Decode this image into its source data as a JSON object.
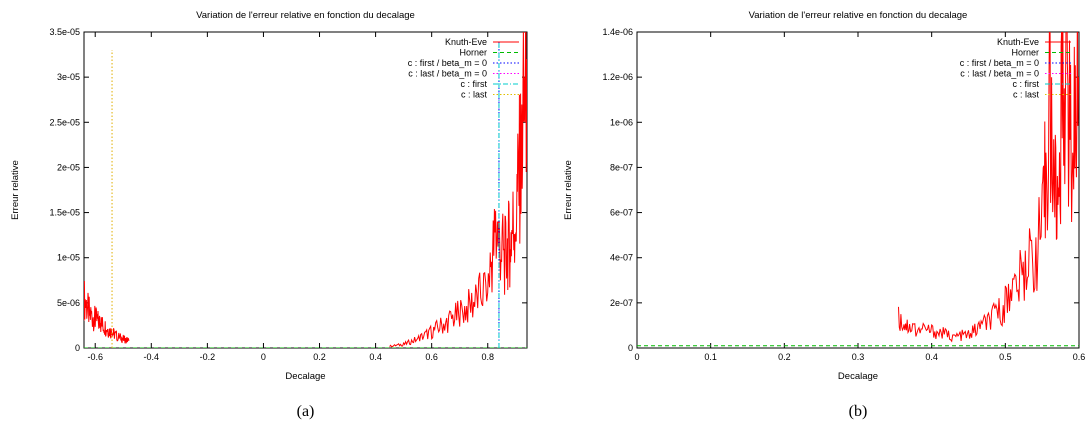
{
  "chart_data": [
    {
      "type": "line",
      "title": "Variation de l'erreur relative en fonction du decalage",
      "xlabel": "Decalage",
      "ylabel": "Erreur relative",
      "caption": "(a)",
      "xlim": [
        -0.64,
        0.94
      ],
      "ylim": [
        0,
        3.5e-05
      ],
      "xticks": [
        -0.6,
        -0.4,
        -0.2,
        0,
        0.2,
        0.4,
        0.6,
        0.8
      ],
      "xtick_labels": [
        "-0.6",
        "-0.4",
        "-0.2",
        "0",
        "0.2",
        "0.4",
        "0.6",
        "0.8"
      ],
      "yticks": [
        0,
        5e-06,
        1e-05,
        1.5e-05,
        2e-05,
        2.5e-05,
        3e-05,
        3.5e-05
      ],
      "ytick_labels": [
        "0",
        "5e-06",
        "1e-05",
        "1.5e-05",
        "2e-05",
        "2.5e-05",
        "3e-05",
        "3.5e-05"
      ],
      "legend_position": "top-right",
      "grid": false,
      "series": [
        {
          "name": "Knuth-Eve",
          "color": "#ff0000",
          "style": "solid",
          "segments": [
            {
              "x": [
                -0.64,
                -0.62,
                -0.6,
                -0.58,
                -0.56,
                -0.54,
                -0.52,
                -0.5,
                -0.48
              ],
              "y": [
                5.5e-06,
                3.8e-06,
                3.2e-06,
                2.7e-06,
                2.2e-06,
                1.7e-06,
                1.3e-06,
                1e-06,
                8e-07
              ]
            },
            {
              "x": [
                0.45,
                0.5,
                0.55,
                0.6,
                0.65,
                0.7,
                0.75,
                0.8,
                0.83,
                0.86,
                0.88,
                0.9,
                0.92,
                0.94
              ],
              "y": [
                2e-07,
                4e-07,
                1e-06,
                1.8e-06,
                2.8e-06,
                3.8e-06,
                5e-06,
                7e-06,
                1.3e-05,
                1e-05,
                1.2e-05,
                1.5e-05,
                2.2e-05,
                3.2e-05
              ]
            }
          ]
        },
        {
          "name": "Horner",
          "color": "#00bb00",
          "style": "dashed",
          "segments": [
            {
              "x": [
                -0.64,
                0.94
              ],
              "y": [
                0,
                0
              ]
            }
          ]
        },
        {
          "name": "c : first / beta_m = 0",
          "color": "#0000ff",
          "style": "dotted",
          "vline": 0.84,
          "y_top": 3.4e-05
        },
        {
          "name": "c : last / beta_m = 0",
          "color": "#ff00ff",
          "style": "dotted",
          "vline": -0.54,
          "y_top": 3.3e-05
        },
        {
          "name": "c : first",
          "color": "#00cccc",
          "style": "dashdot",
          "vline": 0.84,
          "y_top": 3.4e-05
        },
        {
          "name": "c : last",
          "color": "#e0c000",
          "style": "dotted",
          "vline": -0.54,
          "y_top": 3.3e-05
        }
      ]
    },
    {
      "type": "line",
      "title": "Variation de l'erreur relative en fonction du decalage",
      "xlabel": "Decalage",
      "ylabel": "Erreur relative",
      "caption": "(b)",
      "xlim": [
        0,
        0.6
      ],
      "ylim": [
        0,
        1.4e-06
      ],
      "xticks": [
        0,
        0.1,
        0.2,
        0.3,
        0.4,
        0.5,
        0.6
      ],
      "xtick_labels": [
        "0",
        "0.1",
        "0.2",
        "0.3",
        "0.4",
        "0.5",
        "0.6"
      ],
      "yticks": [
        0,
        2e-07,
        4e-07,
        6e-07,
        8e-07,
        1e-06,
        1.2e-06,
        1.4e-06
      ],
      "ytick_labels": [
        "0",
        "2e-07",
        "4e-07",
        "6e-07",
        "8e-07",
        "1e-06",
        "1.2e-06",
        "1.4e-06"
      ],
      "legend_position": "top-right",
      "grid": false,
      "series": [
        {
          "name": "Knuth-Eve",
          "color": "#ff0000",
          "style": "solid",
          "segments": [
            {
              "x": [
                0.355,
                0.37,
                0.39,
                0.41,
                0.43,
                0.45,
                0.47,
                0.49,
                0.51,
                0.53,
                0.55,
                0.56,
                0.57,
                0.58,
                0.59,
                0.6
              ],
              "y": [
                1.3e-07,
                9e-08,
                8e-08,
                7e-08,
                5e-08,
                6e-08,
                1e-07,
                1.5e-07,
                2.5e-07,
                3.5e-07,
                5e-07,
                1.05e-06,
                6e-07,
                1.3e-06,
                9e-07,
                1.2e-06
              ]
            }
          ]
        },
        {
          "name": "Horner",
          "color": "#00bb00",
          "style": "dashed",
          "segments": [
            {
              "x": [
                0,
                0.6
              ],
              "y": [
                1e-08,
                1e-08
              ]
            }
          ]
        },
        {
          "name": "c : first / beta_m = 0",
          "color": "#0000ff",
          "style": "dotted"
        },
        {
          "name": "c : last / beta_m = 0",
          "color": "#ff00ff",
          "style": "dotted"
        },
        {
          "name": "c : first",
          "color": "#00cccc",
          "style": "dashdot"
        },
        {
          "name": "c : last",
          "color": "#e0c000",
          "style": "dotted"
        }
      ]
    }
  ]
}
